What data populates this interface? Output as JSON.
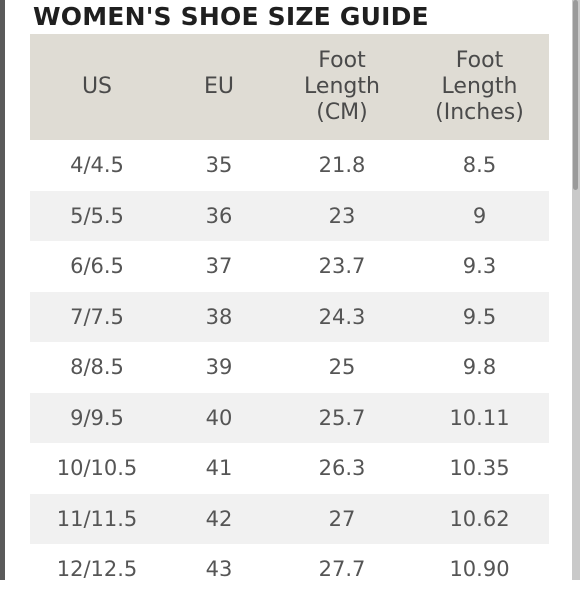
{
  "title": "WOMEN'S SHOE SIZE GUIDE",
  "table": {
    "headers": [
      "US",
      "EU",
      "Foot\nLength\n(CM)",
      "Foot\nLength\n(Inches)"
    ],
    "rows": [
      [
        "4/4.5",
        "35",
        "21.8",
        "8.5"
      ],
      [
        "5/5.5",
        "36",
        "23",
        "9"
      ],
      [
        "6/6.5",
        "37",
        "23.7",
        "9.3"
      ],
      [
        "7/7.5",
        "38",
        "24.3",
        "9.5"
      ],
      [
        "8/8.5",
        "39",
        "25",
        "9.8"
      ],
      [
        "9/9.5",
        "40",
        "25.7",
        "10.11"
      ],
      [
        "10/10.5",
        "41",
        "26.3",
        "10.35"
      ],
      [
        "11/11.5",
        "42",
        "27",
        "10.62"
      ],
      [
        "12/12.5",
        "43",
        "27.7",
        "10.90"
      ]
    ]
  },
  "colors": {
    "header_background": "#dfdcd4",
    "shaded_row": "#f1f1f1",
    "text": "#555555",
    "title": "#1f1f1f"
  }
}
